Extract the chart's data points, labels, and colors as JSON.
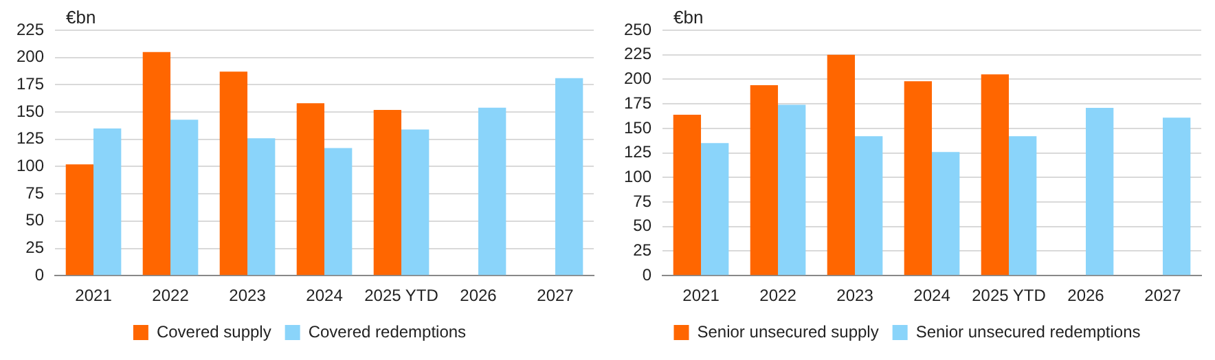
{
  "chart_data": [
    {
      "type": "bar",
      "ylabel": "€bn",
      "categories": [
        "2021",
        "2022",
        "2023",
        "2024",
        "2025 YTD",
        "2026",
        "2027"
      ],
      "series": [
        {
          "name": "Covered supply",
          "color": "#ff6600",
          "values": [
            102,
            205,
            187,
            158,
            152,
            null,
            null
          ]
        },
        {
          "name": "Covered redemptions",
          "color": "#8ad4fa",
          "values": [
            135,
            143,
            126,
            117,
            134,
            154,
            181
          ]
        }
      ],
      "ylim": [
        0,
        225
      ],
      "yticks": [
        0,
        25,
        50,
        75,
        100,
        125,
        150,
        175,
        200,
        225
      ],
      "grid": "y",
      "legend": "bottom"
    },
    {
      "type": "bar",
      "ylabel": "€bn",
      "categories": [
        "2021",
        "2022",
        "2023",
        "2024",
        "2025 YTD",
        "2026",
        "2027"
      ],
      "series": [
        {
          "name": "Senior unsecured supply",
          "color": "#ff6600",
          "values": [
            164,
            194,
            225,
            198,
            205,
            null,
            null
          ]
        },
        {
          "name": "Senior unsecured redemptions",
          "color": "#8ad4fa",
          "values": [
            135,
            174,
            142,
            126,
            142,
            171,
            161
          ]
        }
      ],
      "ylim": [
        0,
        250
      ],
      "yticks": [
        0,
        25,
        50,
        75,
        100,
        125,
        150,
        175,
        200,
        225,
        250
      ],
      "grid": "y",
      "legend": "bottom"
    }
  ]
}
